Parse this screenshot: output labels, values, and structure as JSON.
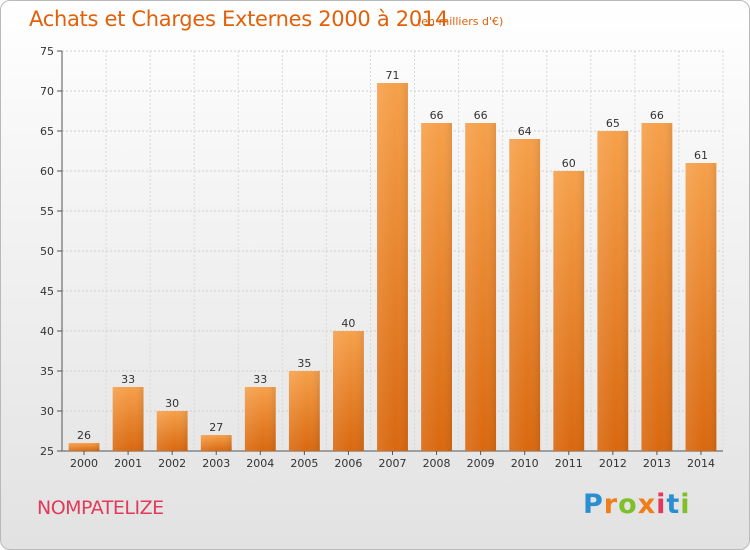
{
  "header": {
    "title": "Achats et Charges Externes 2000 à 2014",
    "subtitle": "(en milliers d'€)"
  },
  "footer": {
    "commune": "NOMPATELIZE",
    "brand_letters": [
      {
        "char": "P",
        "color": "#2a8fd0"
      },
      {
        "char": "r",
        "color": "#ee7d1a"
      },
      {
        "char": "o",
        "color": "#7fbf2a"
      },
      {
        "char": "x",
        "color": "#ee7d1a"
      },
      {
        "char": "i",
        "color": "#e23a5a"
      },
      {
        "char": "t",
        "color": "#2a8fd0"
      },
      {
        "char": "i",
        "color": "#7fbf2a"
      }
    ]
  },
  "chart_data": {
    "type": "bar",
    "title": "Achats et Charges Externes 2000 à 2014",
    "categories": [
      "2000",
      "2001",
      "2002",
      "2003",
      "2004",
      "2005",
      "2006",
      "2007",
      "2008",
      "2009",
      "2010",
      "2011",
      "2012",
      "2013",
      "2014"
    ],
    "values": [
      26,
      33,
      30,
      27,
      33,
      35,
      40,
      71,
      66,
      66,
      64,
      60,
      65,
      66,
      61
    ],
    "ylim": [
      25,
      75
    ],
    "yticks": [
      25,
      30,
      35,
      40,
      45,
      50,
      55,
      60,
      65,
      70,
      75
    ],
    "grid": true,
    "bar_color": "#f28a1e",
    "bar_color_dark": "#d96a10"
  }
}
